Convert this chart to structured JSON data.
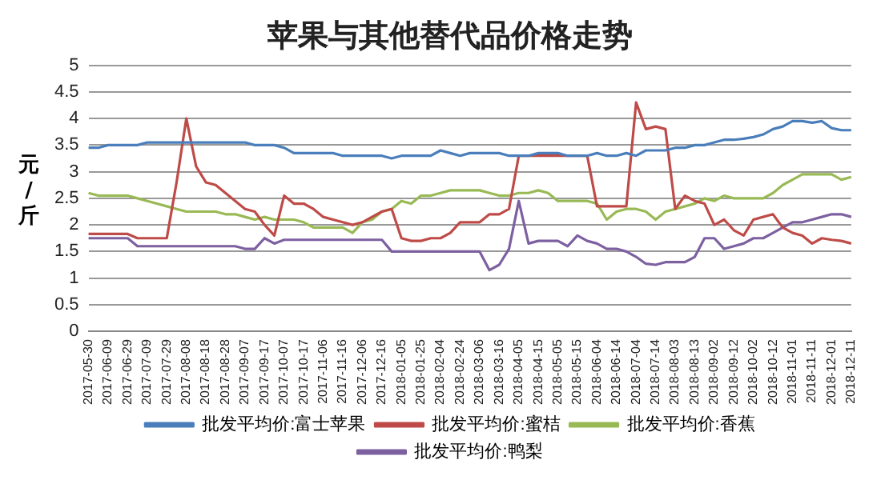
{
  "chart_data": {
    "type": "line",
    "title": "苹果与其他替代品价格走势",
    "ylabel": "元/斤",
    "categories": [
      "2017-05-30",
      null,
      "2017-06-09",
      null,
      "2017-06-29",
      null,
      "2017-07-09",
      null,
      "2017-07-29",
      null,
      "2017-08-08",
      null,
      "2017-08-18",
      null,
      "2017-08-28",
      null,
      "2017-09-07",
      null,
      "2017-09-17",
      null,
      "2017-10-07",
      null,
      "2017-10-17",
      null,
      "2017-11-06",
      null,
      "2017-11-16",
      null,
      "2017-12-06",
      null,
      "2017-12-16",
      null,
      "2018-01-05",
      null,
      "2018-01-25",
      null,
      "2018-02-04",
      null,
      "2018-02-24",
      null,
      "2018-03-06",
      null,
      "2018-03-16",
      null,
      "2018-04-05",
      null,
      "2018-04-15",
      null,
      "2018-05-05",
      null,
      "2018-05-15",
      null,
      "2018-06-04",
      null,
      "2018-06-14",
      null,
      "2018-07-04",
      null,
      "2018-07-14",
      null,
      "2018-08-03",
      null,
      "2018-08-13",
      null,
      "2018-09-02",
      null,
      "2018-09-12",
      null,
      "2018-10-02",
      null,
      "2018-10-12",
      null,
      "2018-11-01",
      null,
      "2018-11-11",
      null,
      "2018-12-01",
      null,
      "2018-12-11"
    ],
    "series": [
      {
        "name": "批发平均价:富士苹果",
        "color": "#4a7ebb",
        "values": [
          3.45,
          3.45,
          3.5,
          3.5,
          3.5,
          3.5,
          3.55,
          3.55,
          3.55,
          3.55,
          3.55,
          3.55,
          3.55,
          3.55,
          3.55,
          3.55,
          3.55,
          3.5,
          3.5,
          3.5,
          3.45,
          3.35,
          3.35,
          3.35,
          3.35,
          3.35,
          3.3,
          3.3,
          3.3,
          3.3,
          3.3,
          3.25,
          3.3,
          3.3,
          3.3,
          3.3,
          3.4,
          3.35,
          3.3,
          3.35,
          3.35,
          3.35,
          3.35,
          3.3,
          3.3,
          3.3,
          3.35,
          3.35,
          3.35,
          3.3,
          3.3,
          3.3,
          3.35,
          3.3,
          3.3,
          3.35,
          3.3,
          3.4,
          3.4,
          3.4,
          3.45,
          3.45,
          3.5,
          3.5,
          3.55,
          3.6,
          3.6,
          3.62,
          3.65,
          3.7,
          3.8,
          3.85,
          3.95,
          3.95,
          3.92,
          3.95,
          3.82,
          3.78,
          3.78
        ]
      },
      {
        "name": "批发平均价:蜜桔",
        "color": "#be4b48",
        "values": [
          1.83,
          1.83,
          1.83,
          1.83,
          1.83,
          1.75,
          1.75,
          1.75,
          1.75,
          2.8,
          4.0,
          3.1,
          2.8,
          2.75,
          2.6,
          2.45,
          2.3,
          2.25,
          2.0,
          1.8,
          2.55,
          2.4,
          2.4,
          2.3,
          2.15,
          2.1,
          2.05,
          2.0,
          2.05,
          2.15,
          2.25,
          2.3,
          1.75,
          1.7,
          1.7,
          1.75,
          1.75,
          1.85,
          2.05,
          2.05,
          2.05,
          2.2,
          2.2,
          2.3,
          3.3,
          3.3,
          3.3,
          3.3,
          3.3,
          3.3,
          3.3,
          3.3,
          2.35,
          2.35,
          2.35,
          2.35,
          4.3,
          3.8,
          3.85,
          3.8,
          2.3,
          2.55,
          2.45,
          2.4,
          2.0,
          2.1,
          1.9,
          1.8,
          2.1,
          2.15,
          2.2,
          1.95,
          1.85,
          1.8,
          1.65,
          1.75,
          1.72,
          1.7,
          1.65
        ]
      },
      {
        "name": "批发平均价:香蕉",
        "color": "#98b954",
        "values": [
          2.6,
          2.55,
          2.55,
          2.55,
          2.55,
          2.5,
          2.45,
          2.4,
          2.35,
          2.3,
          2.25,
          2.25,
          2.25,
          2.25,
          2.2,
          2.2,
          2.15,
          2.1,
          2.15,
          2.1,
          2.1,
          2.1,
          2.05,
          1.95,
          1.95,
          1.95,
          1.95,
          1.85,
          2.05,
          2.1,
          2.25,
          2.3,
          2.45,
          2.4,
          2.55,
          2.55,
          2.6,
          2.65,
          2.65,
          2.65,
          2.65,
          2.6,
          2.55,
          2.55,
          2.6,
          2.6,
          2.65,
          2.6,
          2.45,
          2.45,
          2.45,
          2.45,
          2.4,
          2.1,
          2.25,
          2.3,
          2.3,
          2.25,
          2.1,
          2.25,
          2.3,
          2.35,
          2.4,
          2.5,
          2.45,
          2.55,
          2.5,
          2.5,
          2.5,
          2.5,
          2.6,
          2.75,
          2.85,
          2.95,
          2.95,
          2.95,
          2.95,
          2.85,
          2.9
        ]
      },
      {
        "name": "批发平均价:鸭梨",
        "color": "#7d60a0",
        "values": [
          1.75,
          1.75,
          1.75,
          1.75,
          1.75,
          1.6,
          1.6,
          1.6,
          1.6,
          1.6,
          1.6,
          1.6,
          1.6,
          1.6,
          1.6,
          1.6,
          1.55,
          1.55,
          1.75,
          1.65,
          1.72,
          1.72,
          1.72,
          1.72,
          1.72,
          1.72,
          1.72,
          1.72,
          1.72,
          1.72,
          1.72,
          1.5,
          1.5,
          1.5,
          1.5,
          1.5,
          1.5,
          1.5,
          1.5,
          1.5,
          1.5,
          1.15,
          1.25,
          1.55,
          2.45,
          1.65,
          1.7,
          1.7,
          1.7,
          1.6,
          1.8,
          1.7,
          1.65,
          1.55,
          1.55,
          1.5,
          1.4,
          1.27,
          1.25,
          1.3,
          1.3,
          1.3,
          1.4,
          1.75,
          1.75,
          1.55,
          1.6,
          1.65,
          1.75,
          1.75,
          1.85,
          1.95,
          2.05,
          2.05,
          2.1,
          2.15,
          2.2,
          2.2,
          2.15
        ]
      }
    ],
    "ylim": [
      0,
      5
    ],
    "yticks": [
      0,
      0.5,
      1,
      1.5,
      2,
      2.5,
      3,
      3.5,
      4,
      4.5,
      5
    ],
    "grid": "y",
    "legend": "bottom",
    "marker": "none",
    "line_style": "solid"
  }
}
